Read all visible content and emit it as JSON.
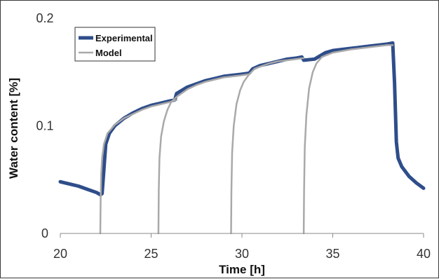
{
  "chart_data": {
    "type": "line",
    "xlabel": "Time [h]",
    "ylabel": "Water content [%]",
    "xlim": [
      20,
      40
    ],
    "ylim": [
      0,
      0.2
    ],
    "x_ticks": [
      20,
      25,
      30,
      35,
      40
    ],
    "y_ticks": [
      0,
      0.1,
      0.2
    ],
    "x_tick_labels": [
      "20",
      "25",
      "30",
      "35",
      "40"
    ],
    "y_tick_labels": [
      "0",
      "0.1",
      "0.2"
    ],
    "grid": false,
    "legend_position": "top-left",
    "series": [
      {
        "name": "Experimental",
        "color": "#2e4d8a",
        "segments": [
          [
            [
              20.0,
              0.048
            ],
            [
              20.5,
              0.046
            ],
            [
              21.0,
              0.044
            ],
            [
              21.5,
              0.041
            ],
            [
              22.0,
              0.038
            ],
            [
              22.2,
              0.036
            ],
            [
              22.3,
              0.037
            ],
            [
              22.4,
              0.06
            ],
            [
              22.5,
              0.083
            ],
            [
              22.7,
              0.093
            ],
            [
              23.0,
              0.1
            ],
            [
              23.5,
              0.107
            ],
            [
              24.0,
              0.112
            ],
            [
              24.5,
              0.116
            ],
            [
              25.0,
              0.119
            ],
            [
              25.5,
              0.121
            ],
            [
              26.0,
              0.123
            ],
            [
              26.3,
              0.124
            ],
            [
              26.4,
              0.13
            ],
            [
              27.0,
              0.136
            ],
            [
              27.5,
              0.139
            ],
            [
              28.0,
              0.142
            ],
            [
              28.5,
              0.144
            ],
            [
              29.0,
              0.146
            ],
            [
              29.5,
              0.147
            ],
            [
              30.0,
              0.148
            ],
            [
              30.4,
              0.149
            ],
            [
              30.6,
              0.153
            ],
            [
              31.0,
              0.156
            ],
            [
              31.5,
              0.158
            ],
            [
              32.0,
              0.16
            ],
            [
              32.5,
              0.162
            ],
            [
              33.0,
              0.163
            ],
            [
              33.3,
              0.164
            ],
            [
              33.4,
              0.161
            ],
            [
              34.0,
              0.162
            ],
            [
              34.3,
              0.165
            ],
            [
              34.6,
              0.168
            ],
            [
              35.0,
              0.17
            ],
            [
              36.0,
              0.172
            ],
            [
              37.0,
              0.174
            ],
            [
              38.0,
              0.176
            ],
            [
              38.3,
              0.177
            ],
            [
              38.4,
              0.14
            ],
            [
              38.5,
              0.085
            ],
            [
              38.6,
              0.07
            ],
            [
              38.8,
              0.062
            ],
            [
              39.2,
              0.053
            ],
            [
              39.6,
              0.047
            ],
            [
              40.0,
              0.042
            ]
          ]
        ]
      },
      {
        "name": "Model",
        "color": "#a9a9a9",
        "segments": [
          [
            [
              22.2,
              0.0
            ],
            [
              22.22,
              0.03
            ],
            [
              22.25,
              0.055
            ],
            [
              22.3,
              0.07
            ],
            [
              22.4,
              0.083
            ],
            [
              22.6,
              0.093
            ],
            [
              23.0,
              0.101
            ],
            [
              23.5,
              0.107
            ],
            [
              24.0,
              0.111
            ],
            [
              24.5,
              0.115
            ],
            [
              25.0,
              0.118
            ],
            [
              25.5,
              0.12
            ],
            [
              26.0,
              0.122
            ],
            [
              26.4,
              0.124
            ]
          ],
          [
            [
              25.4,
              0.0
            ],
            [
              25.42,
              0.04
            ],
            [
              25.46,
              0.07
            ],
            [
              25.55,
              0.09
            ],
            [
              25.7,
              0.104
            ],
            [
              25.9,
              0.115
            ],
            [
              26.1,
              0.122
            ],
            [
              26.4,
              0.127
            ],
            [
              27.0,
              0.134
            ],
            [
              27.5,
              0.138
            ],
            [
              28.0,
              0.141
            ],
            [
              28.5,
              0.143
            ],
            [
              29.0,
              0.145
            ],
            [
              29.5,
              0.146
            ],
            [
              30.0,
              0.147
            ],
            [
              30.4,
              0.148
            ]
          ],
          [
            [
              29.4,
              0.0
            ],
            [
              29.42,
              0.04
            ],
            [
              29.46,
              0.075
            ],
            [
              29.55,
              0.1
            ],
            [
              29.7,
              0.12
            ],
            [
              29.9,
              0.133
            ],
            [
              30.1,
              0.141
            ],
            [
              30.4,
              0.148
            ],
            [
              30.7,
              0.153
            ],
            [
              31.0,
              0.155
            ],
            [
              31.5,
              0.158
            ],
            [
              32.0,
              0.16
            ],
            [
              32.5,
              0.161
            ],
            [
              33.0,
              0.162
            ],
            [
              33.4,
              0.163
            ]
          ],
          [
            [
              33.4,
              0.0
            ],
            [
              33.42,
              0.04
            ],
            [
              33.46,
              0.08
            ],
            [
              33.55,
              0.11
            ],
            [
              33.7,
              0.135
            ],
            [
              33.9,
              0.15
            ],
            [
              34.1,
              0.158
            ],
            [
              34.4,
              0.164
            ],
            [
              35.0,
              0.168
            ],
            [
              36.0,
              0.171
            ],
            [
              37.0,
              0.173
            ],
            [
              38.0,
              0.175
            ],
            [
              38.3,
              0.175
            ]
          ]
        ]
      }
    ]
  }
}
